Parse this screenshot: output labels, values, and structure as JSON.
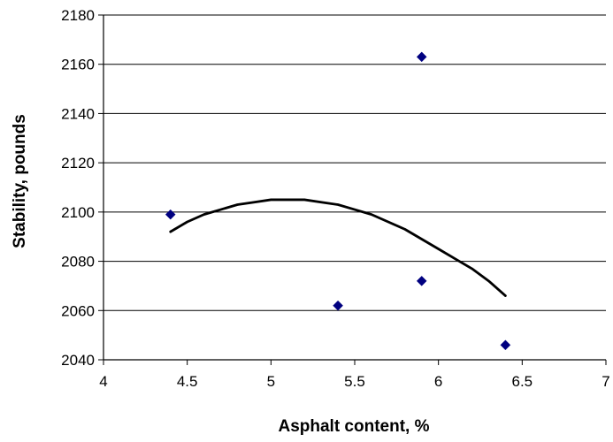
{
  "chart_data": {
    "type": "scatter",
    "title": "",
    "xlabel": "Asphalt content, %",
    "ylabel": "Stability, pounds",
    "xlim": [
      4,
      7
    ],
    "ylim": [
      2040,
      2180
    ],
    "x_ticks": [
      4,
      4.5,
      5,
      5.5,
      6,
      6.5,
      7
    ],
    "x_tick_labels": [
      "4",
      "4.5",
      "5",
      "5.5",
      "6",
      "6.5",
      "7"
    ],
    "y_ticks": [
      2040,
      2060,
      2080,
      2100,
      2120,
      2140,
      2160,
      2180
    ],
    "y_tick_labels": [
      "2040",
      "2060",
      "2080",
      "2100",
      "2120",
      "2140",
      "2160",
      "2180"
    ],
    "grid": "horizontal",
    "legend": "none",
    "series": [
      {
        "type": "scatter",
        "marker": "diamond",
        "color": "#000080",
        "x": [
          4.4,
          5.4,
          5.9,
          5.9,
          6.4
        ],
        "y": [
          2099,
          2062,
          2163,
          2072,
          2046
        ]
      },
      {
        "type": "line",
        "fit": "polynomial",
        "color": "#000000",
        "x": [
          4.4,
          4.5,
          4.6,
          4.7,
          4.8,
          4.9,
          5.0,
          5.1,
          5.2,
          5.3,
          5.4,
          5.5,
          5.6,
          5.7,
          5.8,
          5.9,
          6.0,
          6.1,
          6.2,
          6.3,
          6.4
        ],
        "y": [
          2092,
          2096,
          2099,
          2101,
          2103,
          2104,
          2105,
          2105,
          2105,
          2104,
          2103,
          2101,
          2099,
          2096,
          2093,
          2089,
          2085,
          2081,
          2077,
          2072,
          2066
        ]
      }
    ]
  }
}
